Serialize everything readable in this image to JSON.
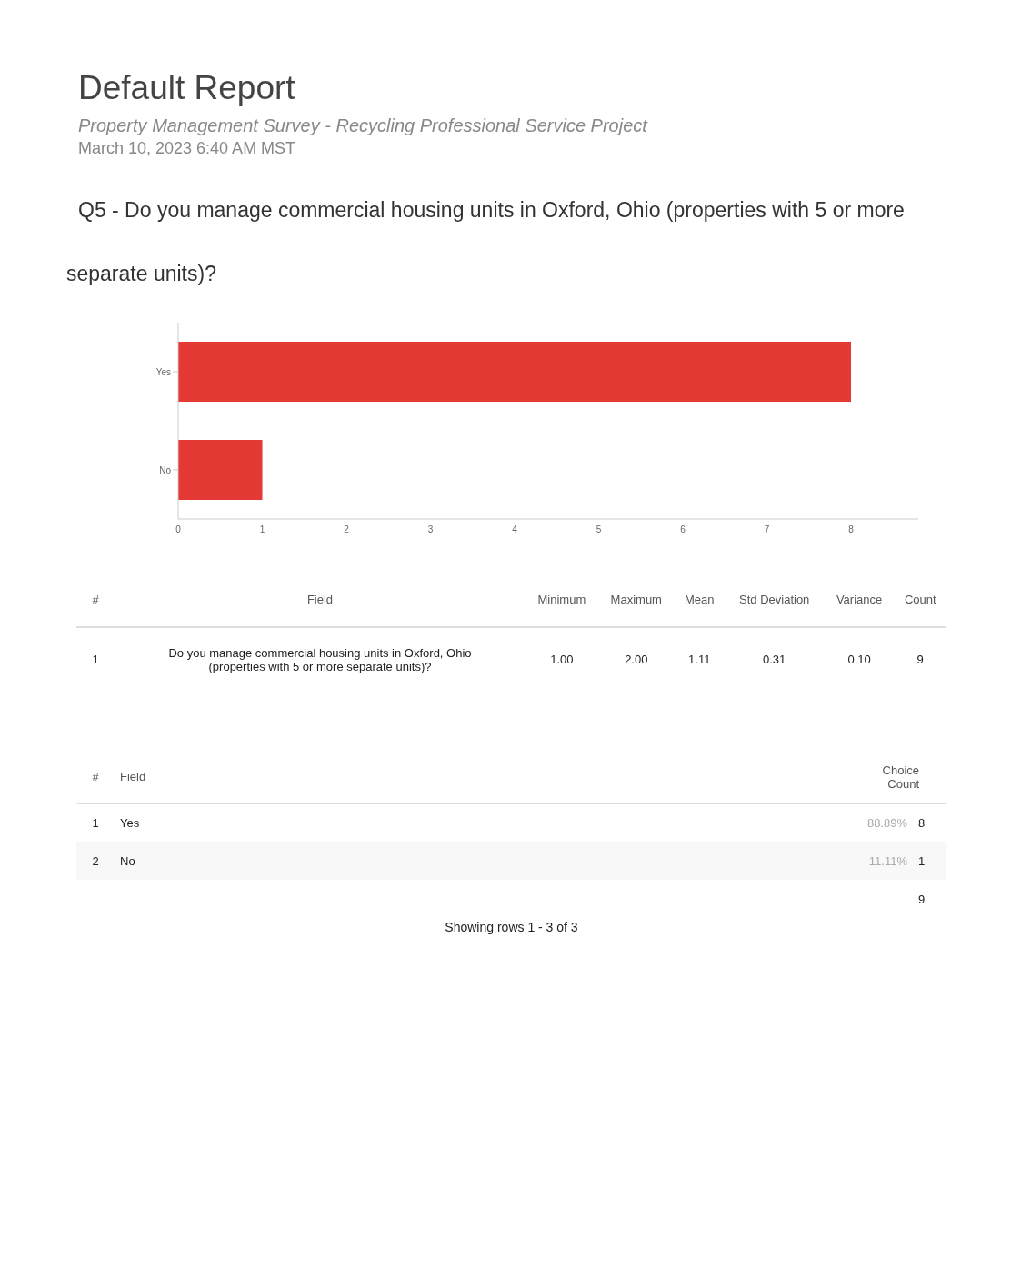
{
  "chart_data": {
    "type": "bar",
    "orientation": "horizontal",
    "title": "Default Report",
    "subtitle": "Property Management Survey - Recycling Professional Service Project",
    "categories": [
      "Yes",
      "No"
    ],
    "values": [
      8,
      1
    ],
    "color": "#e53935",
    "xlim": [
      0,
      8.8
    ],
    "xticks": [
      0,
      1,
      2,
      3,
      4,
      5,
      6,
      7,
      8
    ],
    "grid": false,
    "legend": false,
    "annotations": [
      "March 10, 2023 6:40 AM MST",
      "Q5 - Do you manage commercial housing units in Oxford, Ohio (properties with 5 or more separate units)?",
      "#",
      "Field",
      "Minimum",
      "Maximum",
      "Mean",
      "Std Deviation",
      "Variance",
      "Count",
      "1",
      "Do you manage commercial housing units in Oxford, Ohio (properties with 5 or more separate units)?",
      "1.00",
      "2.00",
      "1.11",
      "0.31",
      "0.10",
      "9",
      "#",
      "Field",
      "Choice Count",
      "1",
      "Yes",
      "88.89%",
      "8",
      "2",
      "No",
      "11.11%",
      "1",
      "9",
      "Showing rows 1 - 3 of 3"
    ]
  }
}
